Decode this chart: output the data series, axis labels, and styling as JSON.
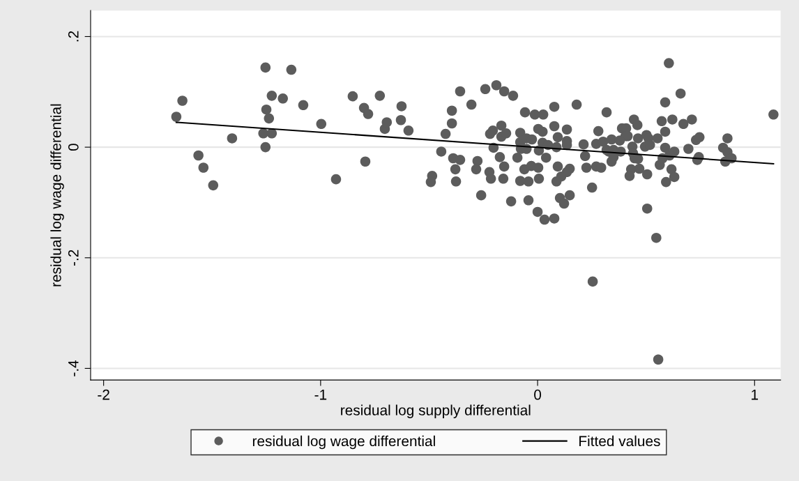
{
  "chart_data": {
    "type": "scatter",
    "xlabel": "residual log supply differential",
    "ylabel": "residual log wage differential",
    "xlim": [
      -2.06,
      1.12
    ],
    "ylim": [
      -0.421,
      0.247
    ],
    "xticks": [
      {
        "value": -2,
        "label": "-2"
      },
      {
        "value": -1,
        "label": "-1"
      },
      {
        "value": 0,
        "label": "0"
      },
      {
        "value": 1,
        "label": "1"
      }
    ],
    "yticks": [
      {
        "value": -0.4,
        "label": "-.4"
      },
      {
        "value": -0.2,
        "label": "-.2"
      },
      {
        "value": 0,
        "label": "0"
      },
      {
        "value": 0.2,
        "label": ".2"
      }
    ],
    "grid": "y",
    "legend": "bottom",
    "series": [
      {
        "name": "residual log wage differential",
        "marker": "circle",
        "color": "#5c5c5c",
        "x": [
          -1.665,
          -1.637,
          -1.563,
          -1.54,
          -1.495,
          -1.408,
          -1.254,
          -1.264,
          -1.254,
          -1.25,
          -1.238,
          -1.225,
          -1.225,
          -1.174,
          -1.135,
          -1.08,
          -0.997,
          -0.929,
          -0.852,
          -0.8,
          -0.794,
          -0.781,
          -0.727,
          -0.704,
          -0.695,
          -0.627,
          -0.63,
          -0.595,
          -0.357,
          -0.241,
          -0.19,
          -0.154,
          -0.113,
          -0.305,
          -0.395,
          -0.395,
          -0.424,
          -0.444,
          -0.389,
          -0.357,
          -0.379,
          -0.376,
          -0.486,
          -0.492,
          -0.277,
          -0.283,
          -0.26,
          -0.203,
          -0.219,
          -0.206,
          -0.167,
          -0.167,
          -0.145,
          -0.174,
          -0.154,
          -0.222,
          -0.215,
          -0.158,
          -0.122,
          -0.093,
          -0.08,
          -0.08,
          -0.077,
          -0.058,
          -0.013,
          0.026,
          -0.051,
          -0.026,
          -0.051,
          -0.061,
          -0.029,
          0.003,
          -0.08,
          -0.042,
          0.006,
          -0.042,
          0.0,
          0.032,
          0.077,
          0.003,
          0.023,
          0.023,
          0.006,
          0.039,
          0.077,
          0.077,
          0.048,
          0.087,
          0.093,
          0.135,
          0.135,
          0.135,
          0.093,
          0.148,
          0.135,
          0.109,
          0.087,
          0.103,
          0.122,
          0.148,
          0.18,
          0.212,
          0.219,
          0.225,
          0.27,
          0.293,
          0.251,
          0.28,
          0.27,
          0.302,
          0.318,
          0.341,
          0.328,
          0.341,
          0.254,
          0.605,
          0.659,
          0.588,
          1.087,
          0.444,
          0.46,
          0.572,
          0.621,
          0.672,
          0.711,
          0.389,
          0.408,
          0.405,
          0.415,
          0.379,
          0.463,
          0.502,
          0.511,
          0.553,
          0.588,
          0.73,
          0.746,
          0.875,
          0.318,
          0.35,
          0.383,
          0.437,
          0.495,
          0.518,
          0.588,
          0.63,
          0.695,
          0.855,
          0.875,
          0.35,
          0.44,
          0.447,
          0.463,
          0.576,
          0.608,
          0.743,
          0.736,
          0.865,
          0.894,
          0.431,
          0.469,
          0.424,
          0.505,
          0.563,
          0.617,
          0.63,
          0.592,
          0.505,
          0.547,
          0.556
        ],
        "values": [
          0.055,
          0.084,
          -0.015,
          -0.037,
          -0.069,
          0.016,
          0.144,
          0.025,
          0.0,
          0.068,
          0.052,
          0.093,
          0.025,
          0.088,
          0.14,
          0.076,
          0.042,
          -0.058,
          0.092,
          0.071,
          -0.026,
          0.06,
          0.093,
          0.033,
          0.045,
          0.074,
          0.049,
          0.03,
          0.101,
          0.105,
          0.112,
          0.101,
          0.093,
          0.077,
          0.066,
          0.043,
          0.024,
          -0.008,
          -0.02,
          -0.023,
          -0.04,
          -0.062,
          -0.052,
          -0.063,
          -0.025,
          -0.04,
          -0.087,
          -0.001,
          0.024,
          0.03,
          0.039,
          0.019,
          0.025,
          -0.018,
          -0.035,
          -0.045,
          -0.057,
          -0.057,
          -0.098,
          -0.019,
          0.026,
          0.009,
          -0.003,
          0.063,
          0.059,
          0.059,
          0.016,
          0.014,
          -0.003,
          -0.04,
          -0.034,
          -0.037,
          -0.061,
          -0.062,
          -0.057,
          -0.096,
          -0.117,
          -0.131,
          -0.129,
          0.033,
          0.028,
          0.008,
          -0.006,
          -0.019,
          0.073,
          0.038,
          0.004,
          0.0,
          0.018,
          0.032,
          0.011,
          0.004,
          -0.035,
          -0.039,
          -0.045,
          -0.053,
          -0.062,
          -0.092,
          -0.102,
          -0.087,
          0.077,
          0.005,
          -0.016,
          -0.037,
          -0.035,
          -0.037,
          -0.073,
          0.029,
          0.006,
          0.01,
          0.063,
          0.014,
          -0.008,
          -0.026,
          -0.243,
          0.152,
          0.097,
          0.081,
          0.059,
          0.05,
          0.04,
          0.047,
          0.05,
          0.042,
          0.05,
          0.034,
          0.034,
          0.02,
          0.02,
          0.012,
          0.016,
          0.022,
          0.016,
          0.016,
          0.028,
          0.013,
          0.018,
          0.016,
          -0.005,
          -0.005,
          -0.008,
          0.001,
          0.001,
          0.004,
          -0.001,
          -0.008,
          -0.003,
          -0.001,
          -0.009,
          -0.018,
          -0.011,
          -0.02,
          -0.021,
          -0.02,
          -0.015,
          -0.018,
          -0.023,
          -0.026,
          -0.02,
          -0.04,
          -0.039,
          -0.052,
          -0.049,
          -0.032,
          -0.04,
          -0.054,
          -0.063,
          -0.111,
          -0.164,
          -0.384
        ]
      },
      {
        "name": "Fitted values",
        "type": "line",
        "color": "#000000",
        "marker": "none",
        "line_style": "solid",
        "x": [
          -1.665,
          1.087
        ],
        "values": [
          0.045,
          -0.03
        ]
      }
    ]
  }
}
